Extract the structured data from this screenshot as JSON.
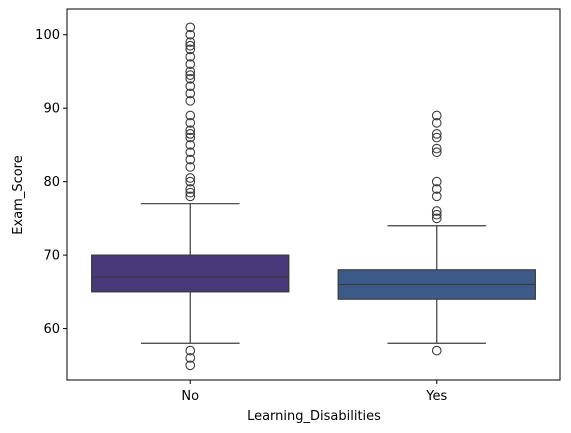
{
  "chart_data": {
    "type": "box",
    "xlabel": "Learning_Disabilities",
    "ylabel": "Exam_Score",
    "categories": [
      "No",
      "Yes"
    ],
    "ylim": [
      53,
      103.5
    ],
    "yticks": [
      60,
      70,
      80,
      90,
      100
    ],
    "grid": false,
    "boxes": [
      {
        "category": "No",
        "color": "#49397a",
        "whisker_low": 58,
        "q1": 65,
        "median": 67,
        "q3": 70,
        "whisker_high": 77,
        "outliers": [
          55,
          56,
          57,
          78,
          78.5,
          79,
          80,
          80.5,
          82,
          83,
          84,
          85,
          86,
          86.5,
          87,
          88,
          89,
          91,
          92,
          93,
          94,
          94.5,
          95,
          96,
          97,
          98,
          98.5,
          99,
          100,
          101
        ]
      },
      {
        "category": "Yes",
        "color": "#3d5b88",
        "whisker_low": 58,
        "q1": 64,
        "median": 66,
        "q3": 68,
        "whisker_high": 74,
        "outliers": [
          57,
          75,
          75.5,
          76,
          78,
          79,
          80,
          84,
          84.5,
          86,
          86.5,
          88,
          89
        ]
      }
    ]
  }
}
